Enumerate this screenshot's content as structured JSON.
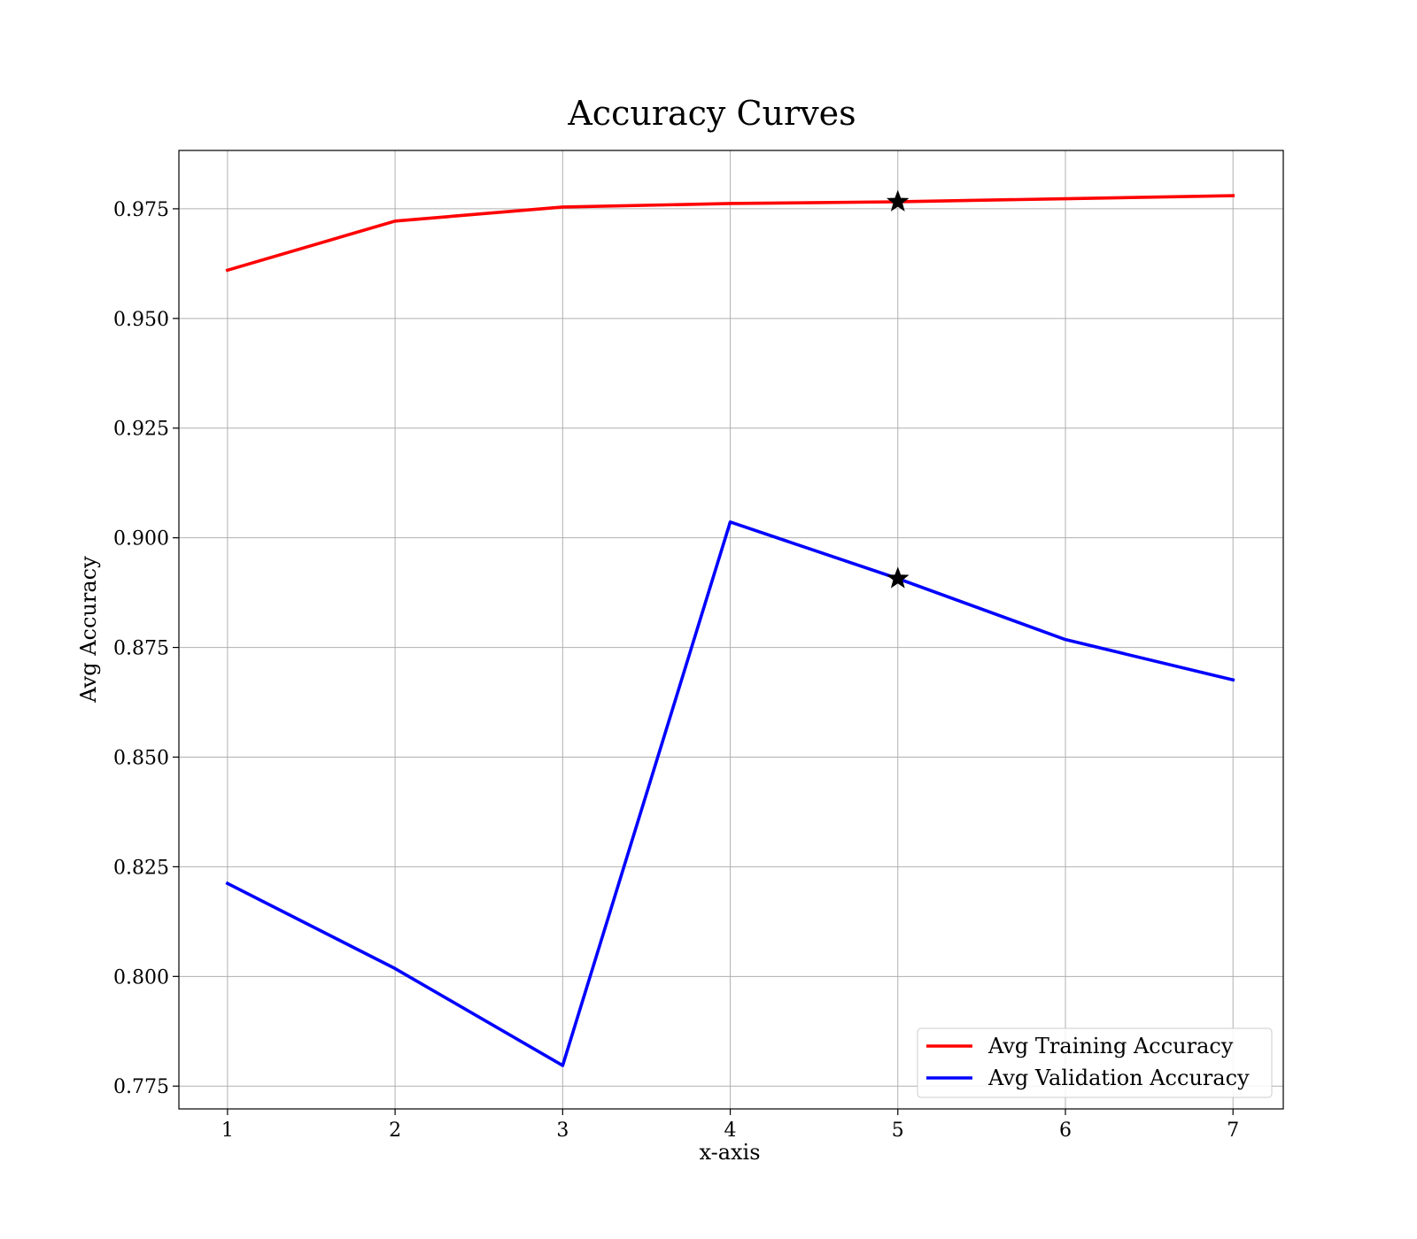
{
  "chart_data": {
    "type": "line",
    "title": "Accuracy Curves",
    "xlabel": "x-axis",
    "ylabel": "Avg Accuracy",
    "x": [
      1,
      2,
      3,
      4,
      5,
      6,
      7
    ],
    "xticks": [
      1,
      2,
      3,
      4,
      5,
      6,
      7
    ],
    "yticks": [
      0.775,
      0.8,
      0.825,
      0.85,
      0.875,
      0.9,
      0.925,
      0.95,
      0.975
    ],
    "xlim": [
      0.71,
      7.3
    ],
    "ylim": [
      0.7698,
      0.9883
    ],
    "grid": true,
    "legend_position": "lower-right",
    "series": [
      {
        "name": "Avg Training Accuracy",
        "color": "#ff0000",
        "values": [
          0.961,
          0.9722,
          0.9754,
          0.9762,
          0.9766,
          0.9773,
          0.978
        ]
      },
      {
        "name": "Avg Validation Accuracy",
        "color": "#0000ff",
        "values": [
          0.8212,
          0.8018,
          0.7797,
          0.9036,
          0.8907,
          0.8768,
          0.8676
        ]
      }
    ],
    "markers": [
      {
        "series": 0,
        "x": 5,
        "y": 0.9766,
        "shape": "star",
        "color": "#000000"
      },
      {
        "series": 1,
        "x": 5,
        "y": 0.8907,
        "shape": "star",
        "color": "#000000"
      }
    ]
  }
}
